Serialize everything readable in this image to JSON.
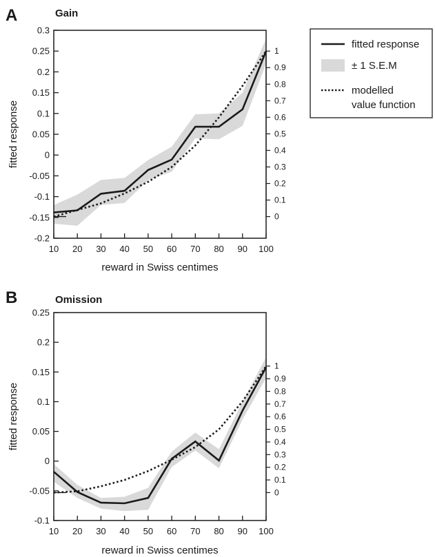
{
  "legend": {
    "items": [
      {
        "label": "fitted response",
        "style": "solid"
      },
      {
        "label": "± 1 S.E.M",
        "style": "band"
      },
      {
        "label": "modelled",
        "label2": "value function",
        "style": "dotted"
      }
    ]
  },
  "colors": {
    "line": "#1a1a1a",
    "band": "#d9d9d9"
  },
  "chart_data": [
    {
      "type": "line",
      "panel": "A",
      "title": "Gain",
      "xlabel": "reward in Swiss centimes",
      "ylabel": "fitted response",
      "categories": [
        10,
        20,
        30,
        40,
        50,
        60,
        70,
        80,
        90,
        100
      ],
      "x_tick_labels": [
        "10",
        "20",
        "30",
        "40",
        "50",
        "60",
        "70",
        "80",
        "90",
        "100"
      ],
      "ylim": [
        -0.2,
        0.3
      ],
      "y_ticks": [
        -0.2,
        -0.15,
        -0.1,
        -0.05,
        0,
        0.05,
        0.1,
        0.15,
        0.2,
        0.25,
        0.3
      ],
      "y_tick_labels": [
        "-0.2",
        "-0.15",
        "-0.1",
        "-0.05",
        "0",
        "0.05",
        "0.1",
        "0.15",
        "0.2",
        "0.25",
        "0.3"
      ],
      "y2_ticks": [
        0,
        0.1,
        0.2,
        0.3,
        0.4,
        0.5,
        0.6,
        0.7,
        0.8,
        0.9,
        1
      ],
      "y2_tick_labels": [
        "0",
        "0.1",
        "0.2",
        "0.3",
        "0.4",
        "0.5",
        "0.6",
        "0.7",
        "0.8",
        "0.9",
        "1"
      ],
      "y2_range_in_y": [
        -0.148,
        0.25
      ],
      "series": [
        {
          "name": "fitted response",
          "values": [
            -0.138,
            -0.133,
            -0.093,
            -0.086,
            -0.036,
            -0.011,
            0.068,
            0.068,
            0.11,
            0.25
          ]
        },
        {
          "name": "± 1 S.E.M",
          "lower": [
            -0.165,
            -0.17,
            -0.12,
            -0.115,
            -0.06,
            -0.04,
            0.04,
            0.038,
            0.07,
            0.22
          ],
          "upper": [
            -0.12,
            -0.095,
            -0.06,
            -0.055,
            -0.012,
            0.02,
            0.098,
            0.1,
            0.15,
            0.28
          ]
        },
        {
          "name": "modelled value function",
          "values": [
            0,
            0.04,
            0.08,
            0.14,
            0.21,
            0.3,
            0.43,
            0.6,
            0.79,
            1.0
          ],
          "axis": "y2"
        }
      ],
      "grid": false
    },
    {
      "type": "line",
      "panel": "B",
      "title": "Omission",
      "xlabel": "reward in Swiss centimes",
      "ylabel": "fitted response",
      "categories": [
        10,
        20,
        30,
        40,
        50,
        60,
        70,
        80,
        90,
        100
      ],
      "x_tick_labels": [
        "10",
        "20",
        "30",
        "40",
        "50",
        "60",
        "70",
        "80",
        "90",
        "100"
      ],
      "ylim": [
        -0.1,
        0.25
      ],
      "y_ticks": [
        -0.1,
        -0.05,
        0,
        0.05,
        0.1,
        0.15,
        0.2,
        0.25
      ],
      "y_tick_labels": [
        "-0.1",
        "-0.05",
        "0",
        "0.05",
        "0.1",
        "0.15",
        "0.2",
        "0.25"
      ],
      "y2_ticks": [
        0,
        0.1,
        0.2,
        0.3,
        0.4,
        0.5,
        0.6,
        0.7,
        0.8,
        0.9,
        1
      ],
      "y2_tick_labels": [
        "0",
        "0.1",
        "0.2",
        "0.3",
        "0.4",
        "0.5",
        "0.6",
        "0.7",
        "0.8",
        "0.9",
        "1"
      ],
      "y2_range_in_y": [
        -0.053,
        0.16
      ],
      "series": [
        {
          "name": "fitted response",
          "values": [
            -0.018,
            -0.052,
            -0.07,
            -0.071,
            -0.062,
            0.004,
            0.033,
            0.001,
            0.085,
            0.158
          ]
        },
        {
          "name": "± 1 S.E.M",
          "lower": [
            -0.035,
            -0.062,
            -0.08,
            -0.084,
            -0.082,
            -0.01,
            0.018,
            -0.012,
            0.07,
            0.14
          ],
          "upper": [
            -0.005,
            -0.04,
            -0.062,
            -0.06,
            -0.045,
            0.016,
            0.048,
            0.02,
            0.1,
            0.175
          ]
        },
        {
          "name": "modelled value function",
          "values": [
            0,
            0.01,
            0.05,
            0.1,
            0.17,
            0.26,
            0.36,
            0.5,
            0.72,
            1.0
          ],
          "axis": "y2"
        }
      ],
      "grid": false
    }
  ]
}
